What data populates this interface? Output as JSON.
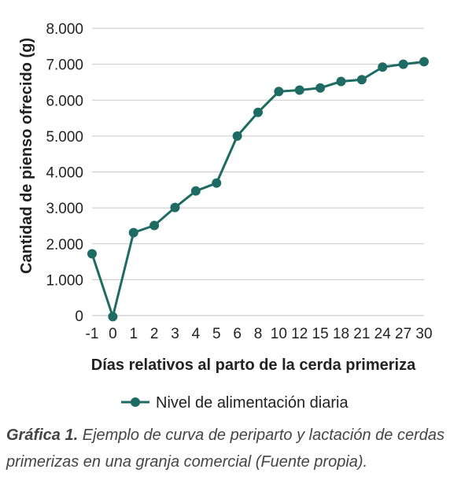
{
  "chart_data": {
    "type": "line",
    "xlabel": "Días relativos al parto de la cerda primeriza",
    "ylabel": "Cantidad de pienso ofrecido (g)",
    "categories": [
      "-1",
      "0",
      "1",
      "2",
      "3",
      "4",
      "5",
      "6",
      "8",
      "10",
      "12",
      "15",
      "18",
      "21",
      "24",
      "27",
      "30"
    ],
    "series": [
      {
        "name": "Nivel de alimentación diaria",
        "values": [
          1720,
          -30,
          2310,
          2510,
          3010,
          3470,
          3690,
          5000,
          5660,
          6240,
          6280,
          6340,
          6520,
          6570,
          6920,
          7000,
          7070
        ]
      }
    ],
    "ylim": [
      0,
      8000
    ],
    "yticks": [
      0,
      1000,
      2000,
      3000,
      4000,
      5000,
      6000,
      7000,
      8000
    ],
    "ytick_labels": [
      "0",
      "1.000",
      "2.000",
      "3.000",
      "4.000",
      "5.000",
      "6.000",
      "7.000",
      "8.000"
    ],
    "grid": "horizontal",
    "legend_position": "bottom",
    "line_color": "#1e6b63"
  },
  "caption": {
    "label": "Gráfica 1.",
    "text": "Ejemplo de curva de periparto y lactación de cerdas primerizas en una granja comercial (Fuente propia)."
  }
}
